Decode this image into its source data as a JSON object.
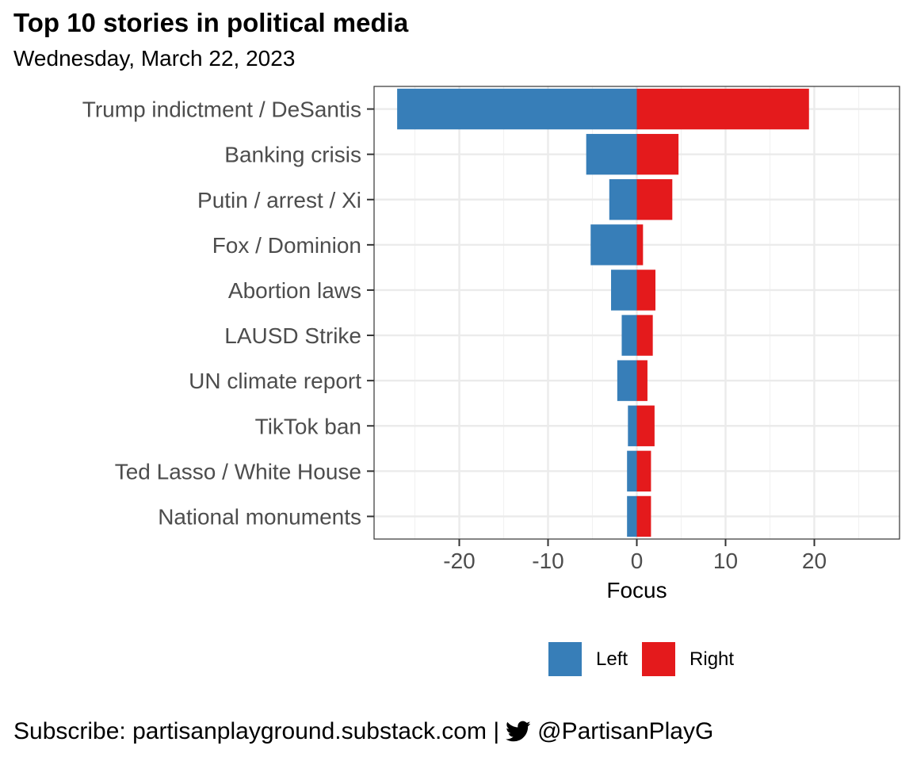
{
  "title": "Top 10 stories in political media",
  "subtitle": "Wednesday, March 22, 2023",
  "footer": {
    "text_before": "Subscribe: partisanplayground.substack.com |",
    "icon": "twitter-bird-icon",
    "handle": "@PartisanPlayG"
  },
  "legend": {
    "items": [
      {
        "label": "Left",
        "color": "#377EB8"
      },
      {
        "label": "Right",
        "color": "#E41A1C"
      }
    ]
  },
  "chart_data": {
    "type": "bar",
    "orientation": "horizontal",
    "stacked": "diverging",
    "categories": [
      "Trump indictment / DeSantis",
      "Banking crisis",
      "Putin / arrest / Xi",
      "Fox / Dominion",
      "Abortion laws",
      "LAUSD Strike",
      "UN climate report",
      "TikTok ban",
      "Ted Lasso / White House",
      "National monuments"
    ],
    "series": [
      {
        "name": "Left",
        "color": "#377EB8",
        "values": [
          -27.0,
          -5.7,
          -3.1,
          -5.2,
          -2.9,
          -1.7,
          -2.2,
          -1.0,
          -1.1,
          -1.1
        ]
      },
      {
        "name": "Right",
        "color": "#E41A1C",
        "values": [
          19.4,
          4.7,
          4.0,
          0.7,
          2.1,
          1.8,
          1.2,
          2.0,
          1.6,
          1.6
        ]
      }
    ],
    "xlabel": "Focus",
    "ylabel": "",
    "xlim": [
      -29.6,
      29.6
    ],
    "xticks": [
      -20,
      -10,
      0,
      10,
      20
    ],
    "xtick_labels": [
      "-20",
      "-10",
      "0",
      "10",
      "20"
    ],
    "grid": true,
    "legend_position": "bottom"
  }
}
